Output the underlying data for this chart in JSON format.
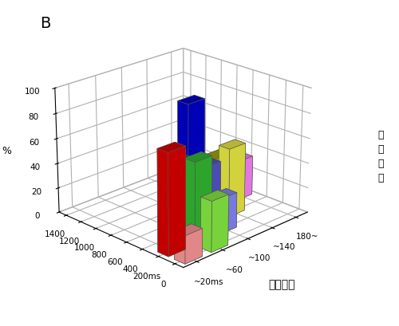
{
  "title": "B",
  "xlabel": "反応時間",
  "ylabel_text": "移動時間",
  "zlabel": "%",
  "reaction_time_labels": [
    "~20ms",
    "~60",
    "~100",
    "~140",
    "180~"
  ],
  "movement_time_labels": [
    "0",
    "200ms",
    "400",
    "600",
    "800",
    "1000",
    "1200",
    "1400"
  ],
  "bar_data": [
    {
      "rt": 0,
      "mt": 0,
      "value": 22,
      "color": "#FF9999"
    },
    {
      "rt": 0,
      "mt": 1,
      "value": 80,
      "color": "#DD0000"
    },
    {
      "rt": 1,
      "mt": 0,
      "value": 40,
      "color": "#88EE44"
    },
    {
      "rt": 1,
      "mt": 1,
      "value": 65,
      "color": "#33BB33"
    },
    {
      "rt": 1,
      "mt": 2,
      "value": 58,
      "color": "#007700"
    },
    {
      "rt": 2,
      "mt": 1,
      "value": 28,
      "color": "#8888FF"
    },
    {
      "rt": 2,
      "mt": 2,
      "value": 48,
      "color": "#5555CC"
    },
    {
      "rt": 2,
      "mt": 3,
      "value": 93,
      "color": "#0000CC"
    },
    {
      "rt": 3,
      "mt": 2,
      "value": 55,
      "color": "#EEEE44"
    },
    {
      "rt": 3,
      "mt": 3,
      "value": 42,
      "color": "#AAAA00"
    },
    {
      "rt": 4,
      "mt": 3,
      "value": 32,
      "color": "#FF88FF"
    },
    {
      "rt": 4,
      "mt": 4,
      "value": 18,
      "color": "#CC00CC"
    }
  ],
  "zlim": [
    0,
    100
  ],
  "figsize": [
    5.0,
    4.09
  ],
  "dpi": 100,
  "background_color": "#FFFFFF"
}
